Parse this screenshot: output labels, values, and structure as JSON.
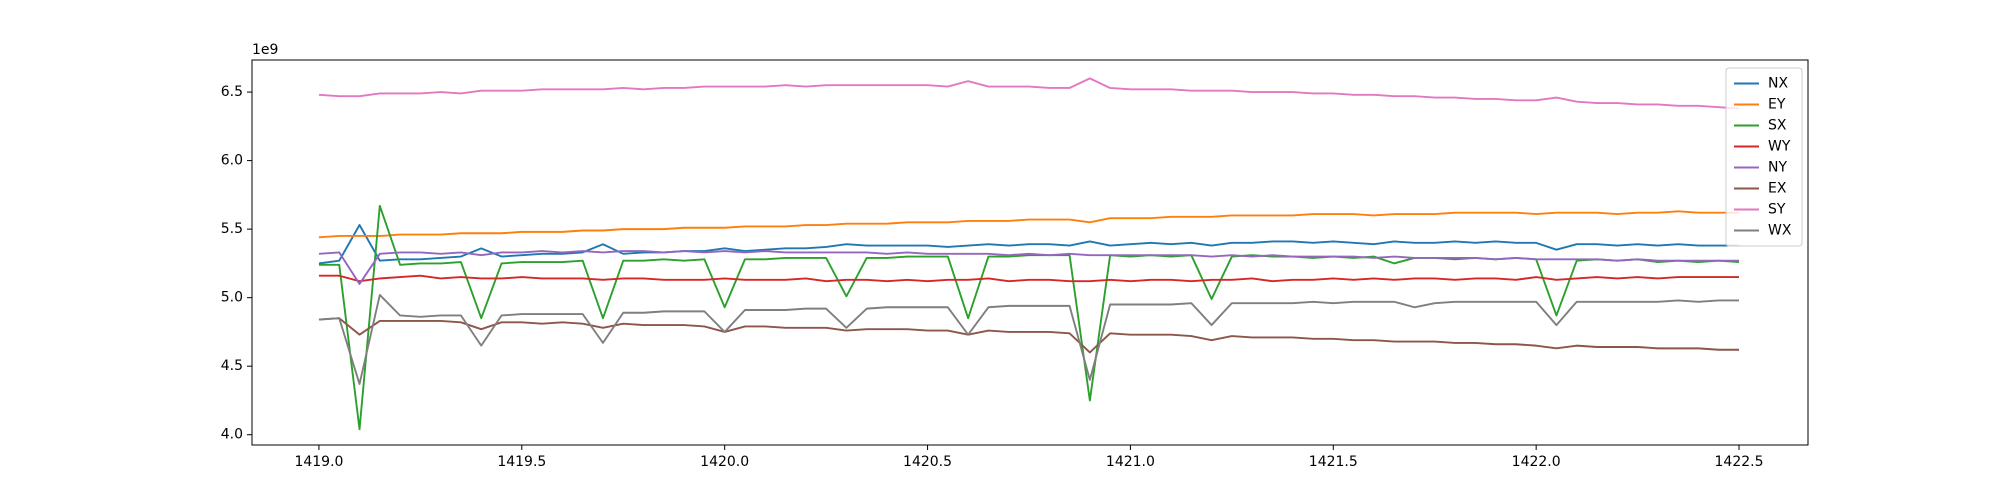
{
  "chart_data": {
    "type": "line",
    "y_offset_label": "1e9",
    "x": [
      1419,
      1419.05,
      1419.1,
      1419.15,
      1419.2,
      1419.25,
      1419.3,
      1419.35,
      1419.4,
      1419.45,
      1419.5,
      1419.55,
      1419.6,
      1419.65,
      1419.7,
      1419.75,
      1419.8,
      1419.85,
      1419.9,
      1419.95,
      1420,
      1420.05,
      1420.1,
      1420.15,
      1420.2,
      1420.25,
      1420.3,
      1420.35,
      1420.4,
      1420.45,
      1420.5,
      1420.55,
      1420.6,
      1420.65,
      1420.7,
      1420.75,
      1420.8,
      1420.85,
      1420.9,
      1420.95,
      1421,
      1421.05,
      1421.1,
      1421.15,
      1421.2,
      1421.25,
      1421.3,
      1421.35,
      1421.4,
      1421.45,
      1421.5,
      1421.55,
      1421.6,
      1421.65,
      1421.7,
      1421.75,
      1421.8,
      1421.85,
      1421.9,
      1421.95,
      1422,
      1422.05,
      1422.1,
      1422.15,
      1422.2,
      1422.25,
      1422.3,
      1422.35,
      1422.4,
      1422.45,
      1422.5
    ],
    "series": [
      {
        "name": "NX",
        "color": "#1f77b4",
        "values": [
          5.25,
          5.27,
          5.53,
          5.27,
          5.28,
          5.28,
          5.29,
          5.3,
          5.36,
          5.3,
          5.31,
          5.32,
          5.32,
          5.33,
          5.39,
          5.32,
          5.33,
          5.33,
          5.34,
          5.34,
          5.36,
          5.34,
          5.35,
          5.36,
          5.36,
          5.37,
          5.39,
          5.38,
          5.38,
          5.38,
          5.38,
          5.37,
          5.38,
          5.39,
          5.38,
          5.39,
          5.39,
          5.38,
          5.41,
          5.38,
          5.39,
          5.4,
          5.39,
          5.4,
          5.38,
          5.4,
          5.4,
          5.41,
          5.41,
          5.4,
          5.41,
          5.4,
          5.39,
          5.41,
          5.4,
          5.4,
          5.41,
          5.4,
          5.41,
          5.4,
          5.4,
          5.35,
          5.39,
          5.39,
          5.38,
          5.39,
          5.38,
          5.39,
          5.38,
          5.38,
          5.38
        ]
      },
      {
        "name": "EY",
        "color": "#ff7f0e",
        "values": [
          5.44,
          5.45,
          5.45,
          5.45,
          5.46,
          5.46,
          5.46,
          5.47,
          5.47,
          5.47,
          5.48,
          5.48,
          5.48,
          5.49,
          5.49,
          5.5,
          5.5,
          5.5,
          5.51,
          5.51,
          5.51,
          5.52,
          5.52,
          5.52,
          5.53,
          5.53,
          5.54,
          5.54,
          5.54,
          5.55,
          5.55,
          5.55,
          5.56,
          5.56,
          5.56,
          5.57,
          5.57,
          5.57,
          5.55,
          5.58,
          5.58,
          5.58,
          5.59,
          5.59,
          5.59,
          5.6,
          5.6,
          5.6,
          5.6,
          5.61,
          5.61,
          5.61,
          5.6,
          5.61,
          5.61,
          5.61,
          5.62,
          5.62,
          5.62,
          5.62,
          5.61,
          5.62,
          5.62,
          5.62,
          5.61,
          5.62,
          5.62,
          5.63,
          5.62,
          5.62,
          5.62
        ]
      },
      {
        "name": "SX",
        "color": "#2ca02c",
        "values": [
          5.24,
          5.24,
          4.04,
          5.67,
          5.24,
          5.25,
          5.25,
          5.26,
          4.85,
          5.25,
          5.26,
          5.26,
          5.26,
          5.27,
          4.85,
          5.27,
          5.27,
          5.28,
          5.27,
          5.28,
          4.93,
          5.28,
          5.28,
          5.29,
          5.29,
          5.29,
          5.01,
          5.29,
          5.29,
          5.3,
          5.3,
          5.3,
          4.85,
          5.3,
          5.3,
          5.31,
          5.31,
          5.31,
          4.25,
          5.31,
          5.3,
          5.31,
          5.3,
          5.31,
          4.99,
          5.3,
          5.31,
          5.3,
          5.3,
          5.29,
          5.3,
          5.29,
          5.3,
          5.25,
          5.29,
          5.29,
          5.28,
          5.29,
          5.28,
          5.29,
          5.28,
          4.87,
          5.27,
          5.28,
          5.27,
          5.28,
          5.26,
          5.27,
          5.26,
          5.27,
          5.26
        ]
      },
      {
        "name": "WY",
        "color": "#d62728",
        "values": [
          5.16,
          5.16,
          5.12,
          5.14,
          5.15,
          5.16,
          5.14,
          5.15,
          5.14,
          5.14,
          5.15,
          5.14,
          5.14,
          5.14,
          5.13,
          5.14,
          5.14,
          5.13,
          5.13,
          5.13,
          5.14,
          5.13,
          5.13,
          5.13,
          5.14,
          5.12,
          5.13,
          5.13,
          5.12,
          5.13,
          5.12,
          5.13,
          5.13,
          5.14,
          5.12,
          5.13,
          5.13,
          5.12,
          5.12,
          5.13,
          5.12,
          5.13,
          5.13,
          5.12,
          5.13,
          5.13,
          5.14,
          5.12,
          5.13,
          5.13,
          5.14,
          5.13,
          5.14,
          5.13,
          5.14,
          5.14,
          5.13,
          5.14,
          5.14,
          5.13,
          5.15,
          5.13,
          5.14,
          5.15,
          5.14,
          5.15,
          5.14,
          5.15,
          5.15,
          5.15,
          5.15
        ]
      },
      {
        "name": "NY",
        "color": "#9467bd",
        "values": [
          5.32,
          5.33,
          5.1,
          5.32,
          5.33,
          5.33,
          5.32,
          5.33,
          5.31,
          5.33,
          5.33,
          5.34,
          5.33,
          5.34,
          5.33,
          5.34,
          5.34,
          5.33,
          5.34,
          5.33,
          5.34,
          5.33,
          5.34,
          5.33,
          5.33,
          5.33,
          5.33,
          5.33,
          5.32,
          5.33,
          5.32,
          5.32,
          5.32,
          5.32,
          5.31,
          5.32,
          5.31,
          5.32,
          5.31,
          5.31,
          5.31,
          5.31,
          5.31,
          5.31,
          5.3,
          5.31,
          5.3,
          5.31,
          5.3,
          5.3,
          5.3,
          5.3,
          5.29,
          5.3,
          5.29,
          5.29,
          5.29,
          5.29,
          5.28,
          5.29,
          5.28,
          5.28,
          5.28,
          5.28,
          5.27,
          5.28,
          5.27,
          5.27,
          5.27,
          5.27,
          5.27
        ]
      },
      {
        "name": "EX",
        "color": "#8c564b",
        "values": [
          4.84,
          4.85,
          4.73,
          4.83,
          4.83,
          4.83,
          4.83,
          4.82,
          4.77,
          4.82,
          4.82,
          4.81,
          4.82,
          4.81,
          4.78,
          4.81,
          4.8,
          4.8,
          4.8,
          4.79,
          4.75,
          4.79,
          4.79,
          4.78,
          4.78,
          4.78,
          4.76,
          4.77,
          4.77,
          4.77,
          4.76,
          4.76,
          4.73,
          4.76,
          4.75,
          4.75,
          4.75,
          4.74,
          4.6,
          4.74,
          4.73,
          4.73,
          4.73,
          4.72,
          4.69,
          4.72,
          4.71,
          4.71,
          4.71,
          4.7,
          4.7,
          4.69,
          4.69,
          4.68,
          4.68,
          4.68,
          4.67,
          4.67,
          4.66,
          4.66,
          4.65,
          4.63,
          4.65,
          4.64,
          4.64,
          4.64,
          4.63,
          4.63,
          4.63,
          4.62,
          4.62
        ]
      },
      {
        "name": "SY",
        "color": "#e377c2",
        "values": [
          6.48,
          6.47,
          6.47,
          6.49,
          6.49,
          6.49,
          6.5,
          6.49,
          6.51,
          6.51,
          6.51,
          6.52,
          6.52,
          6.52,
          6.52,
          6.53,
          6.52,
          6.53,
          6.53,
          6.54,
          6.54,
          6.54,
          6.54,
          6.55,
          6.54,
          6.55,
          6.55,
          6.55,
          6.55,
          6.55,
          6.55,
          6.54,
          6.58,
          6.54,
          6.54,
          6.54,
          6.53,
          6.53,
          6.6,
          6.53,
          6.52,
          6.52,
          6.52,
          6.51,
          6.51,
          6.51,
          6.5,
          6.5,
          6.5,
          6.49,
          6.49,
          6.48,
          6.48,
          6.47,
          6.47,
          6.46,
          6.46,
          6.45,
          6.45,
          6.44,
          6.44,
          6.46,
          6.43,
          6.42,
          6.42,
          6.41,
          6.41,
          6.4,
          6.4,
          6.39,
          6.38
        ]
      },
      {
        "name": "WX",
        "color": "#7f7f7f",
        "values": [
          4.84,
          4.85,
          4.37,
          5.02,
          4.87,
          4.86,
          4.87,
          4.87,
          4.65,
          4.87,
          4.88,
          4.88,
          4.88,
          4.88,
          4.67,
          4.89,
          4.89,
          4.9,
          4.9,
          4.9,
          4.75,
          4.91,
          4.91,
          4.91,
          4.92,
          4.92,
          4.78,
          4.92,
          4.93,
          4.93,
          4.93,
          4.93,
          4.73,
          4.93,
          4.94,
          4.94,
          4.94,
          4.94,
          4.4,
          4.95,
          4.95,
          4.95,
          4.95,
          4.96,
          4.8,
          4.96,
          4.96,
          4.96,
          4.96,
          4.97,
          4.96,
          4.97,
          4.97,
          4.97,
          4.93,
          4.96,
          4.97,
          4.97,
          4.97,
          4.97,
          4.97,
          4.8,
          4.97,
          4.97,
          4.97,
          4.97,
          4.97,
          4.98,
          4.97,
          4.98,
          4.98
        ]
      }
    ],
    "xlim": [
      1418.835,
      1422.67
    ],
    "ylim": [
      3.925,
      6.734
    ],
    "xticks": [
      {
        "value": 1419,
        "label": "1419.0"
      },
      1419.5,
      {
        "value": 1420,
        "label": "1420.0"
      },
      1420.5,
      {
        "value": 1421,
        "label": "1421.0"
      },
      1421.5,
      {
        "value": 1422,
        "label": "1422.0"
      },
      1422.5
    ],
    "yticks": [
      {
        "value": 4,
        "label": "4.0"
      },
      4.5,
      {
        "value": 5,
        "label": "5.0"
      },
      5.5,
      {
        "value": 6,
        "label": "6.0"
      },
      6.5
    ],
    "grid": false,
    "legend": "upper right"
  }
}
